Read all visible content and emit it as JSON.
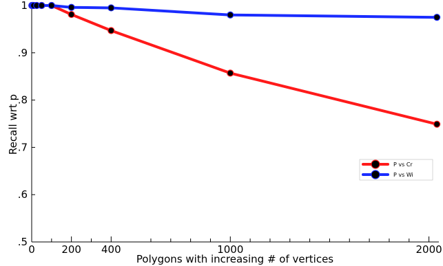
{
  "chart_data": {
    "type": "line",
    "xlabel": "Polygons with increasing # of vertices",
    "ylabel": "Recall wrt p",
    "xlim": [
      0,
      2050
    ],
    "ylim": [
      0.5,
      1.0
    ],
    "x_ticks": [
      {
        "value": 0,
        "label": "0"
      },
      {
        "value": 200,
        "label": "200"
      },
      {
        "value": 400,
        "label": "400"
      },
      {
        "value": 1000,
        "label": "1000"
      },
      {
        "value": 2000,
        "label": "2000"
      }
    ],
    "x_minor_ticks": [
      100,
      300,
      600,
      700,
      800,
      900,
      1100,
      1200,
      1300,
      1400,
      1500,
      1600,
      1700,
      1800,
      1900
    ],
    "y_ticks": [
      {
        "value": 0.5,
        "label": ".5"
      },
      {
        "value": 0.6,
        "label": ".6"
      },
      {
        "value": 0.7,
        "label": ".7"
      },
      {
        "value": 0.8,
        "label": ".8"
      },
      {
        "value": 0.9,
        "label": ".9"
      },
      {
        "value": 1.0,
        "label": "1"
      }
    ],
    "grid": false,
    "legend_position": "bottom-right",
    "series": [
      {
        "name": "P vs Cr",
        "color": "#ff1a1a",
        "points": [
          [
            1,
            1.0
          ],
          [
            5,
            1.0
          ],
          [
            10,
            1.0
          ],
          [
            25,
            1.0
          ],
          [
            50,
            1.0
          ],
          [
            100,
            1.0
          ],
          [
            200,
            0.981
          ],
          [
            400,
            0.947
          ],
          [
            1000,
            0.857
          ],
          [
            2040,
            0.749
          ]
        ]
      },
      {
        "name": "P vs Wi",
        "color": "#1a2cff",
        "points": [
          [
            1,
            1.0
          ],
          [
            5,
            1.0
          ],
          [
            10,
            1.0
          ],
          [
            25,
            1.0
          ],
          [
            50,
            1.0
          ],
          [
            100,
            1.0
          ],
          [
            200,
            0.996
          ],
          [
            400,
            0.995
          ],
          [
            1000,
            0.98
          ],
          [
            2040,
            0.975
          ]
        ]
      }
    ]
  }
}
